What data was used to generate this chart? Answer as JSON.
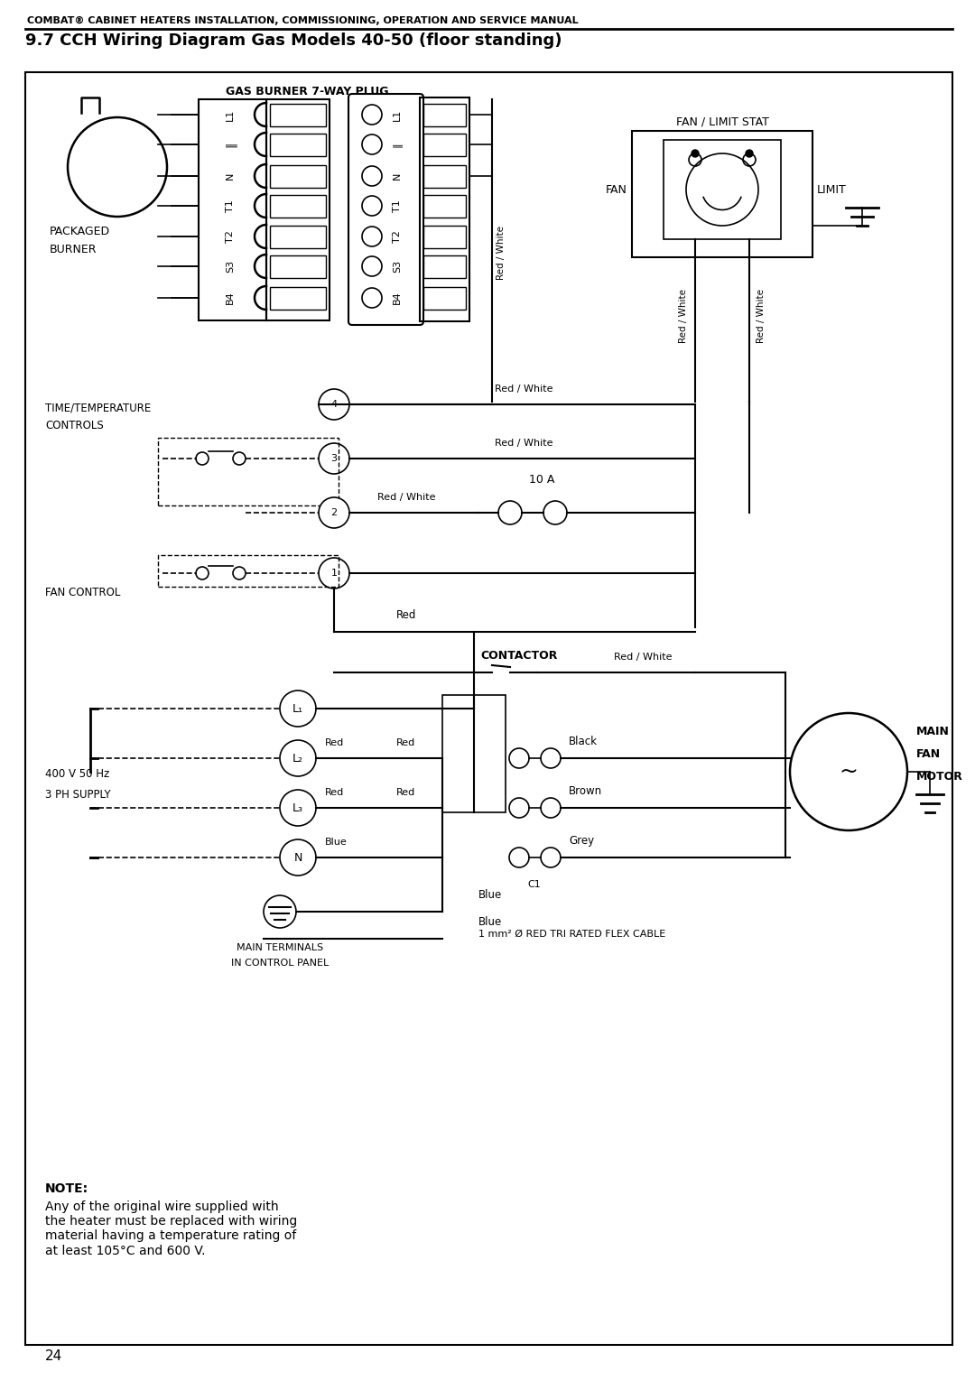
{
  "title_header": "COMBAT® CABINET HEATERS INSTALLATION, COMMISSIONING, OPERATION AND SERVICE MANUAL",
  "section_title": "9.7 CCH Wiring Diagram Gas Models 40-50 (floor standing)",
  "page_number": "24",
  "bg_color": "#ffffff",
  "line_color": "#000000",
  "note_bold": "NOTE:",
  "note_body": "Any of the original wire supplied with\nthe heater must be replaced with wiring\nmaterial having a temperature rating of\nat least 105°C and 600 V.",
  "labels": {
    "gas_burner_plug": "GAS BURNER 7-WAY PLUG",
    "packaged_burner_1": "PACKAGED",
    "packaged_burner_2": "BURNER",
    "fan_limit_stat": "FAN / LIMIT STAT",
    "fan": "FAN",
    "limit": "LIMIT",
    "time_temp_1": "TIME/TEMPERATURE",
    "time_temp_2": "CONTROLS",
    "fan_control": "FAN CONTROL",
    "supply_400v_1": "400 V 50 Hz",
    "supply_400v_2": "3 PH SUPPLY",
    "contactor": "CONTACTOR",
    "main_terminals_1": "MAIN TERMINALS",
    "main_terminals_2": "IN CONTROL PANEL",
    "flex_cable": "1 mm² Ø RED TRI RATED FLEX CABLE",
    "c1": "C1",
    "10a": "10 A",
    "main_fan_motor_1": "MAIN",
    "main_fan_motor_2": "FAN",
    "main_fan_motor_3": "MOTOR"
  },
  "pin_labels": [
    "L1",
    "-||-",
    "N",
    "T1",
    "T2",
    "S3",
    "B4"
  ]
}
